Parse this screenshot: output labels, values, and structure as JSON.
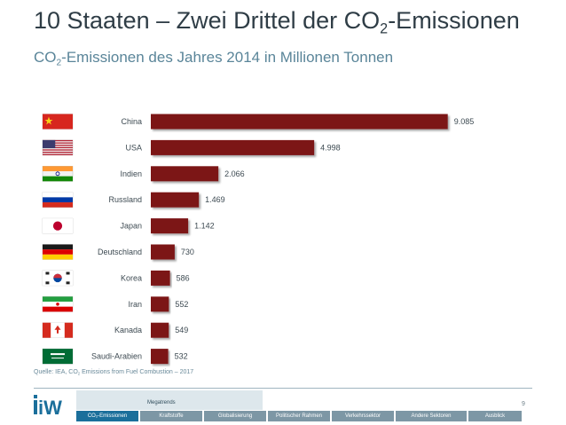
{
  "header": {
    "title_pre": "10 Staaten – Zwei Drittel der CO",
    "title_sub": "2",
    "title_post": "-Emissionen",
    "subtitle_pre": "CO",
    "subtitle_sub": "2",
    "subtitle_post": "-Emissionen des Jahres 2014 in Millionen Tonnen"
  },
  "chart_data": {
    "type": "bar",
    "orientation": "horizontal",
    "categories": [
      "China",
      "USA",
      "Indien",
      "Russland",
      "Japan",
      "Deutschland",
      "Korea",
      "Iran",
      "Kanada",
      "Saudi-Arabien"
    ],
    "values": [
      9085,
      4998,
      2066,
      1469,
      1142,
      730,
      586,
      552,
      549,
      532
    ],
    "value_labels": [
      "9.085",
      "4.998",
      "2.066",
      "1.469",
      "1.142",
      "730",
      "586",
      "552",
      "549",
      "532"
    ],
    "xlim": [
      0,
      9500
    ],
    "bar_color": "#7b1416",
    "flags": [
      "china-flag-icon",
      "usa-flag-icon",
      "india-flag-icon",
      "russia-flag-icon",
      "japan-flag-icon",
      "germany-flag-icon",
      "korea-flag-icon",
      "iran-flag-icon",
      "canada-flag-icon",
      "saudi-arabia-flag-icon"
    ]
  },
  "source": {
    "pre": "Quelle: IEA, CO",
    "sub": "2",
    "post": " Emissions from Fuel Combustion – 2017"
  },
  "footer": {
    "logo_text": "iW",
    "logo_icon": "iw-logo-icon",
    "page_number": "9",
    "nav_group_label": "Megatrends",
    "nav_items": [
      "CO₂-Emissionen",
      "Kraftstoffe",
      "Globalisierung",
      "Politischer Rahmen",
      "Verkehrssektor",
      "Andere Sektoren",
      "Ausblick"
    ],
    "active_index": 0,
    "colors": {
      "active": "#1b6f9b",
      "inactive": "#7d97a5"
    }
  }
}
